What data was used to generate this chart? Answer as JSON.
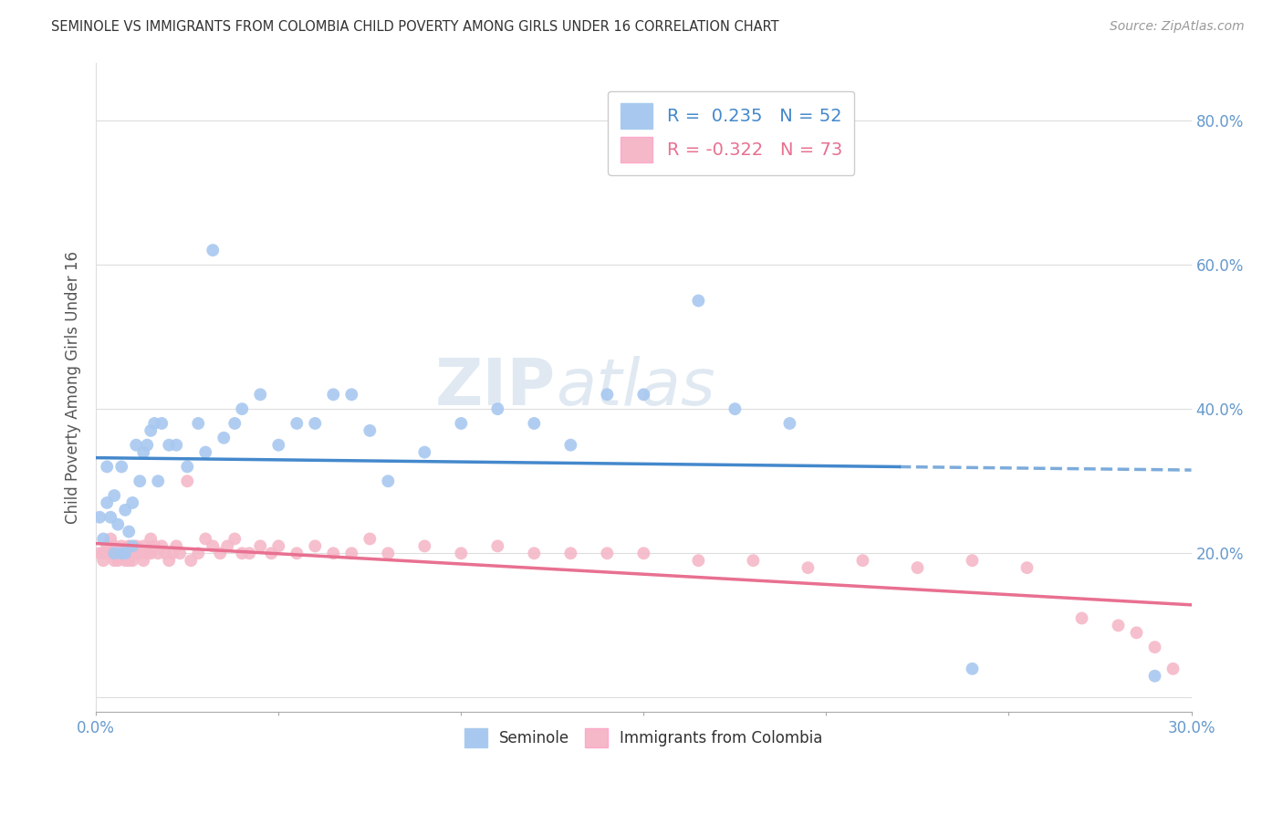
{
  "title": "SEMINOLE VS IMMIGRANTS FROM COLOMBIA CHILD POVERTY AMONG GIRLS UNDER 16 CORRELATION CHART",
  "source": "Source: ZipAtlas.com",
  "ylabel": "Child Poverty Among Girls Under 16",
  "xlim": [
    0.0,
    0.3
  ],
  "ylim": [
    -0.02,
    0.88
  ],
  "yticks": [
    0.0,
    0.2,
    0.4,
    0.6,
    0.8
  ],
  "ytick_labels": [
    "",
    "20.0%",
    "40.0%",
    "60.0%",
    "80.0%"
  ],
  "xticks": [
    0.0,
    0.05,
    0.1,
    0.15,
    0.2,
    0.25,
    0.3
  ],
  "xtick_labels": [
    "0.0%",
    "",
    "",
    "",
    "",
    "",
    "30.0%"
  ],
  "seminole_color": "#A8C8F0",
  "colombia_color": "#F5B8C8",
  "seminole_line_color": "#4488CC",
  "colombia_line_color": "#E87090",
  "seminole_R": 0.235,
  "seminole_N": 52,
  "colombia_R": -0.322,
  "colombia_N": 73,
  "seminole_x": [
    0.001,
    0.002,
    0.003,
    0.003,
    0.004,
    0.005,
    0.005,
    0.006,
    0.007,
    0.007,
    0.008,
    0.008,
    0.009,
    0.01,
    0.01,
    0.011,
    0.012,
    0.013,
    0.014,
    0.015,
    0.016,
    0.017,
    0.018,
    0.02,
    0.022,
    0.025,
    0.028,
    0.03,
    0.032,
    0.035,
    0.038,
    0.04,
    0.045,
    0.05,
    0.055,
    0.06,
    0.065,
    0.07,
    0.075,
    0.08,
    0.09,
    0.1,
    0.11,
    0.12,
    0.13,
    0.14,
    0.15,
    0.165,
    0.175,
    0.19,
    0.24,
    0.29
  ],
  "seminole_y": [
    0.25,
    0.22,
    0.27,
    0.32,
    0.25,
    0.2,
    0.28,
    0.24,
    0.2,
    0.32,
    0.26,
    0.2,
    0.23,
    0.27,
    0.21,
    0.35,
    0.3,
    0.34,
    0.35,
    0.37,
    0.38,
    0.3,
    0.38,
    0.35,
    0.35,
    0.32,
    0.38,
    0.34,
    0.62,
    0.36,
    0.38,
    0.4,
    0.42,
    0.35,
    0.38,
    0.38,
    0.42,
    0.42,
    0.37,
    0.3,
    0.34,
    0.38,
    0.4,
    0.38,
    0.35,
    0.42,
    0.42,
    0.55,
    0.4,
    0.38,
    0.04,
    0.03
  ],
  "colombia_x": [
    0.001,
    0.002,
    0.002,
    0.003,
    0.003,
    0.004,
    0.004,
    0.005,
    0.005,
    0.006,
    0.006,
    0.007,
    0.007,
    0.008,
    0.008,
    0.009,
    0.009,
    0.01,
    0.01,
    0.011,
    0.011,
    0.012,
    0.013,
    0.013,
    0.014,
    0.015,
    0.015,
    0.016,
    0.017,
    0.018,
    0.019,
    0.02,
    0.021,
    0.022,
    0.023,
    0.025,
    0.026,
    0.028,
    0.03,
    0.032,
    0.034,
    0.036,
    0.038,
    0.04,
    0.042,
    0.045,
    0.048,
    0.05,
    0.055,
    0.06,
    0.065,
    0.07,
    0.075,
    0.08,
    0.09,
    0.1,
    0.11,
    0.12,
    0.13,
    0.14,
    0.15,
    0.165,
    0.18,
    0.195,
    0.21,
    0.225,
    0.24,
    0.255,
    0.27,
    0.28,
    0.285,
    0.29,
    0.295
  ],
  "colombia_y": [
    0.2,
    0.19,
    0.2,
    0.2,
    0.21,
    0.2,
    0.22,
    0.19,
    0.21,
    0.2,
    0.19,
    0.2,
    0.21,
    0.2,
    0.19,
    0.21,
    0.19,
    0.2,
    0.19,
    0.2,
    0.21,
    0.2,
    0.21,
    0.19,
    0.2,
    0.2,
    0.22,
    0.21,
    0.2,
    0.21,
    0.2,
    0.19,
    0.2,
    0.21,
    0.2,
    0.3,
    0.19,
    0.2,
    0.22,
    0.21,
    0.2,
    0.21,
    0.22,
    0.2,
    0.2,
    0.21,
    0.2,
    0.21,
    0.2,
    0.21,
    0.2,
    0.2,
    0.22,
    0.2,
    0.21,
    0.2,
    0.21,
    0.2,
    0.2,
    0.2,
    0.2,
    0.19,
    0.19,
    0.18,
    0.19,
    0.18,
    0.19,
    0.18,
    0.11,
    0.1,
    0.09,
    0.07,
    0.04
  ],
  "background_color": "#FFFFFF",
  "grid_color": "#DDDDDD",
  "title_color": "#333333",
  "axis_label_color": "#555555",
  "tick_color": "#6699CC",
  "watermark_zip_color": "#C8D8E8",
  "watermark_atlas_color": "#C8D8E8"
}
